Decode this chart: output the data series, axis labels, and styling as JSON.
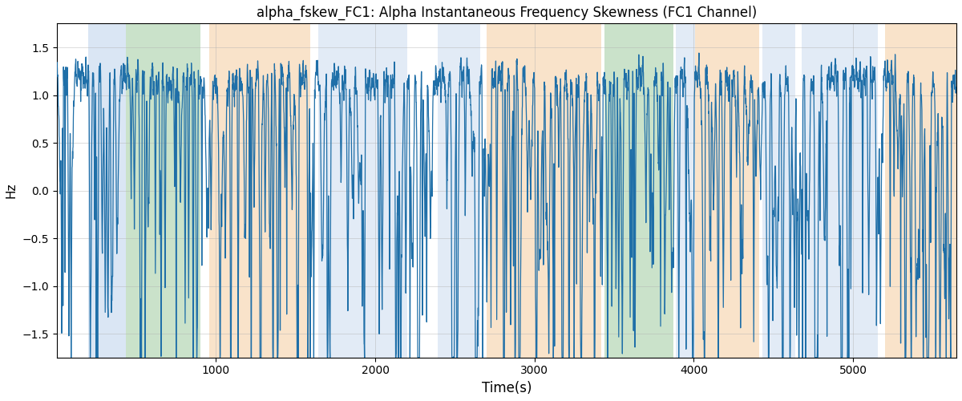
{
  "title": "alpha_fskew_FC1: Alpha Instantaneous Frequency Skewness (FC1 Channel)",
  "xlabel": "Time(s)",
  "ylabel": "Hz",
  "xlim": [
    0,
    5650
  ],
  "ylim": [
    -1.75,
    1.75
  ],
  "yticks": [
    -1.5,
    -1.0,
    -0.5,
    0.0,
    0.5,
    1.0,
    1.5
  ],
  "xticks": [
    1000,
    2000,
    3000,
    4000,
    5000
  ],
  "line_color": "#1f6fa8",
  "line_width": 0.9,
  "grid_color": "#b0b0b0",
  "grid_alpha": 0.6,
  "background_color": "#ffffff",
  "colored_regions": [
    {
      "xmin": 195,
      "xmax": 435,
      "color": "#adc8e8",
      "alpha": 0.45
    },
    {
      "xmin": 435,
      "xmax": 900,
      "color": "#8bbf8b",
      "alpha": 0.45
    },
    {
      "xmin": 955,
      "xmax": 1590,
      "color": "#f5c897",
      "alpha": 0.5
    },
    {
      "xmin": 1640,
      "xmax": 2200,
      "color": "#adc8e8",
      "alpha": 0.35
    },
    {
      "xmin": 2390,
      "xmax": 2660,
      "color": "#adc8e8",
      "alpha": 0.35
    },
    {
      "xmin": 2700,
      "xmax": 3420,
      "color": "#f5c897",
      "alpha": 0.5
    },
    {
      "xmin": 3440,
      "xmax": 3870,
      "color": "#8bbf8b",
      "alpha": 0.45
    },
    {
      "xmin": 3890,
      "xmax": 4010,
      "color": "#adc8e8",
      "alpha": 0.35
    },
    {
      "xmin": 4010,
      "xmax": 4410,
      "color": "#f5c897",
      "alpha": 0.5
    },
    {
      "xmin": 4430,
      "xmax": 4640,
      "color": "#adc8e8",
      "alpha": 0.35
    },
    {
      "xmin": 4680,
      "xmax": 5155,
      "color": "#adc8e8",
      "alpha": 0.35
    },
    {
      "xmin": 5200,
      "xmax": 5650,
      "color": "#f5c897",
      "alpha": 0.5
    }
  ]
}
